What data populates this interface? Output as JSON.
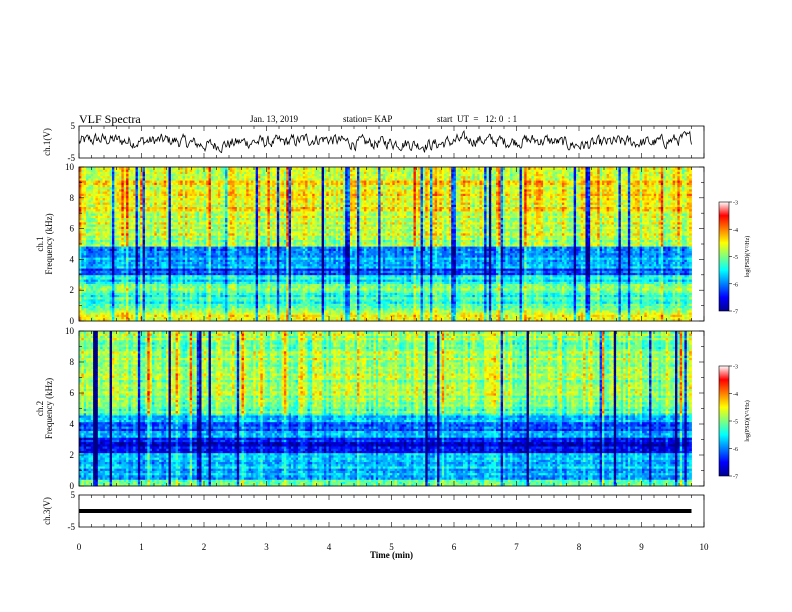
{
  "header": {
    "title": "VLF Spectra",
    "date": "Jan. 13, 2019",
    "station": "station= KAP",
    "start": "start  UT  =   12: 0  : 1"
  },
  "chart_data": [
    {
      "type": "line",
      "panel": "ch1-waveform",
      "ylabel": "ch.1(V)",
      "ylim": [
        -5,
        5
      ],
      "yticks": [
        "5",
        "-5"
      ],
      "xlim": [
        0,
        10
      ],
      "series": [
        {
          "values": "noisy waveform fluctuating roughly between -3 and 3 V over 0–9.8 min"
        }
      ]
    },
    {
      "type": "heatmap",
      "panel": "ch1-spectrogram",
      "ylabel": "ch.1 Frequency (kHz)",
      "ylim": [
        0,
        10
      ],
      "yticks": [
        "0",
        "2",
        "4",
        "6",
        "8",
        "10"
      ],
      "xlim": [
        0,
        10
      ],
      "data_extent_min": 9.8,
      "colorbar": {
        "label": "log(PSD)(V²/Hz)",
        "range": [
          -7,
          -3
        ],
        "ticks": [
          "-3",
          "-4",
          "-5",
          "-6",
          "-7"
        ]
      },
      "bands_khz_level": [
        [
          0,
          0.6,
          -4.5
        ],
        [
          0.6,
          1.2,
          -5.0
        ],
        [
          1.2,
          2.0,
          -5.3
        ],
        [
          2.0,
          2.4,
          -4.8
        ],
        [
          2.4,
          3.0,
          -5.6
        ],
        [
          3.0,
          3.5,
          -6.2
        ],
        [
          3.5,
          4.0,
          -5.8
        ],
        [
          4.0,
          4.9,
          -5.8
        ],
        [
          4.9,
          5.3,
          -5.0
        ],
        [
          5.3,
          7.0,
          -4.7
        ],
        [
          7.0,
          10.0,
          -4.5
        ]
      ]
    },
    {
      "type": "heatmap",
      "panel": "ch2-spectrogram",
      "ylabel": "ch.2 Frequency (kHz)",
      "ylim": [
        0,
        10
      ],
      "yticks": [
        "0",
        "2",
        "4",
        "6",
        "8",
        "10"
      ],
      "xlim": [
        0,
        10
      ],
      "data_extent_min": 9.8,
      "colorbar": {
        "label": "log(PSD)(V²/Hz)",
        "range": [
          -7,
          -3
        ],
        "ticks": [
          "-3",
          "-4",
          "-5",
          "-6",
          "-7"
        ]
      },
      "bands_khz_level": [
        [
          0,
          0.5,
          -5.2
        ],
        [
          0.5,
          1.8,
          -5.8
        ],
        [
          1.8,
          2.2,
          -5.9
        ],
        [
          2.2,
          3.2,
          -6.6
        ],
        [
          3.2,
          3.6,
          -5.8
        ],
        [
          3.6,
          4.2,
          -6.1
        ],
        [
          4.2,
          4.6,
          -5.6
        ],
        [
          4.6,
          5.2,
          -5.2
        ],
        [
          5.2,
          10.0,
          -4.9
        ]
      ]
    },
    {
      "type": "line",
      "panel": "ch3-waveform",
      "ylabel": "ch.3(V)",
      "ylim": [
        -5,
        5
      ],
      "yticks": [
        "5",
        "-5"
      ],
      "xlim": [
        0,
        10
      ],
      "series": [
        {
          "values": "flat line at about 0 V over 0–9.8 min"
        }
      ]
    }
  ],
  "xaxis": {
    "label": "Time  (min)",
    "ticks": [
      "0",
      "1",
      "2",
      "3",
      "4",
      "5",
      "6",
      "7",
      "8",
      "9",
      "10"
    ]
  }
}
